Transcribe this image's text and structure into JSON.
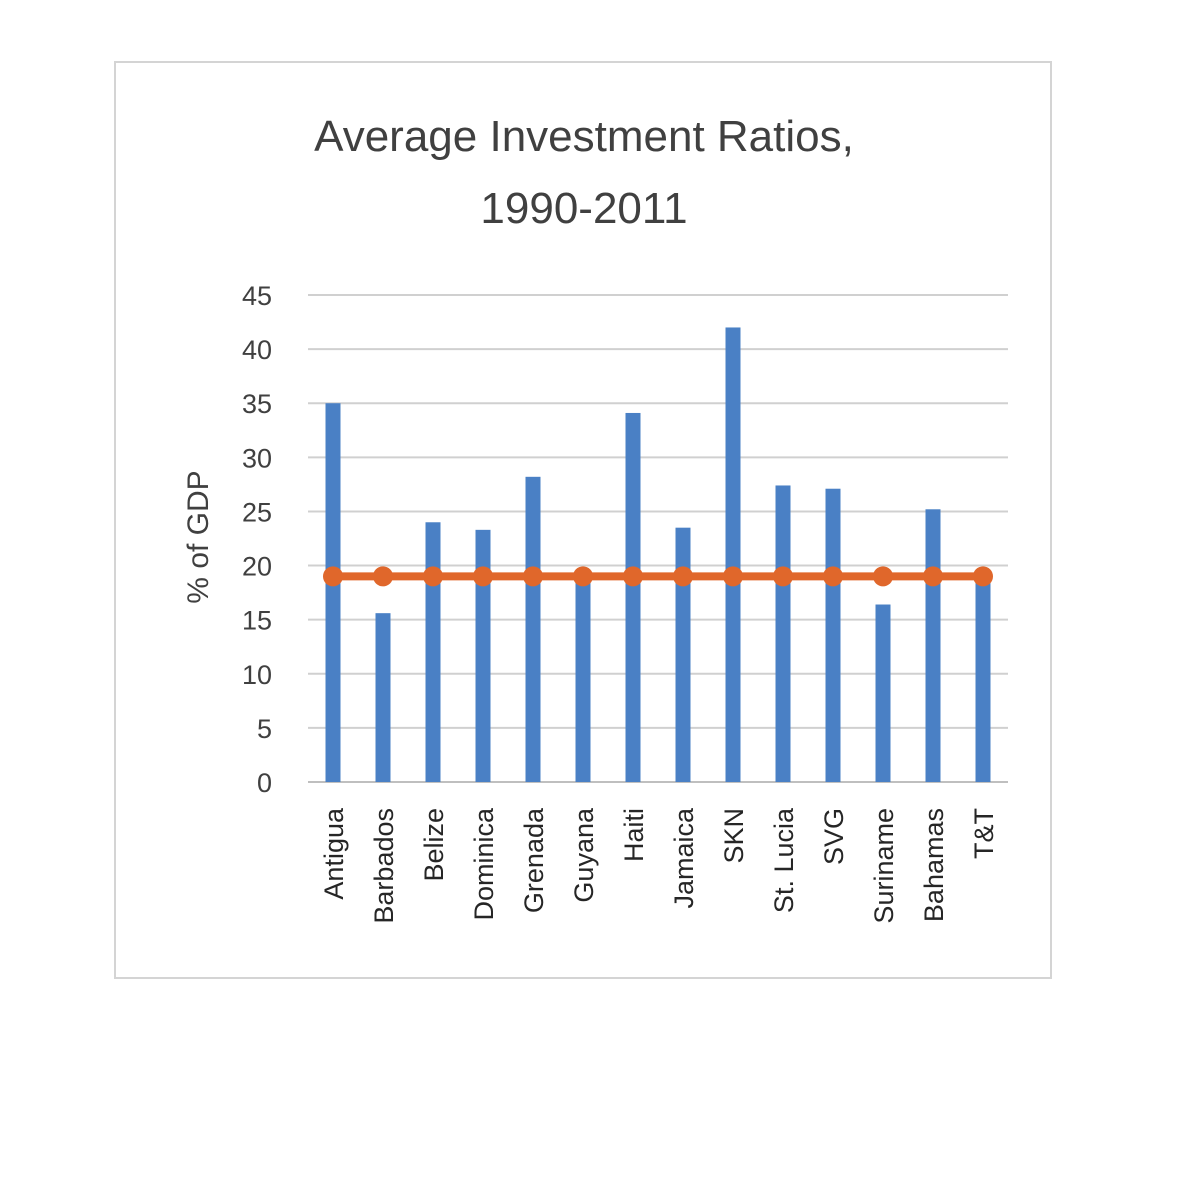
{
  "chart_data": {
    "type": "bar",
    "title": "Average Investment Ratios, 1990-2011",
    "title_lines": [
      "Average Investment Ratios,",
      "1990-2011"
    ],
    "xlabel": "",
    "ylabel": "% of GDP",
    "ylim": [
      0,
      45
    ],
    "yticks": [
      0,
      5,
      10,
      15,
      20,
      25,
      30,
      35,
      40,
      45
    ],
    "grid": true,
    "legend": "none",
    "categories": [
      "Antigua",
      "Barbados",
      "Belize",
      "Dominica",
      "Grenada",
      "Guyana",
      "Haiti",
      "Jamaica",
      "SKN",
      "St. Lucia",
      "SVG",
      "Suriname",
      "Bahamas",
      "T&T"
    ],
    "series": [
      {
        "type": "bar",
        "color": "#4a80c5",
        "values": [
          35,
          15.6,
          24,
          23.3,
          28.2,
          19,
          34.1,
          23.5,
          42,
          27.4,
          27.1,
          16.4,
          25.2,
          19
        ]
      },
      {
        "type": "line",
        "color": "#e0672b",
        "marker": "circle",
        "values": [
          19,
          19,
          19,
          19,
          19,
          19,
          19,
          19,
          19,
          19,
          19,
          19,
          19,
          19
        ]
      }
    ]
  }
}
